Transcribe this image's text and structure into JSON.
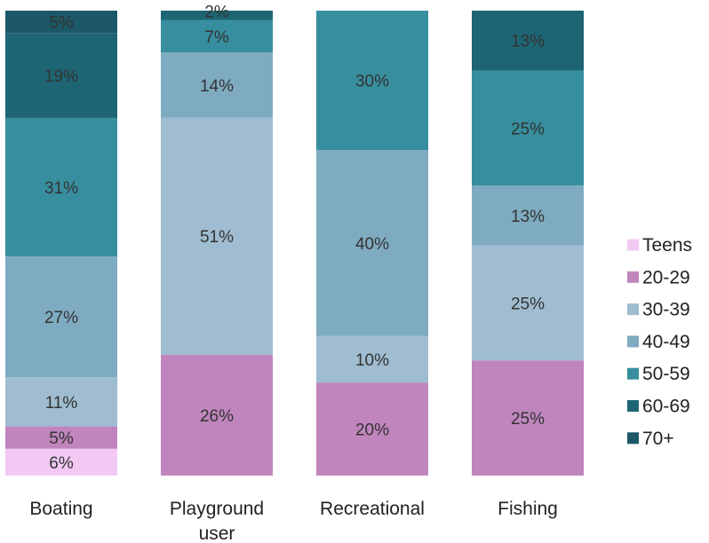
{
  "chart_data": {
    "type": "bar",
    "stacked": true,
    "normalized": true,
    "categories": [
      "Boating",
      "Playground user",
      "Recreational",
      "Fishing"
    ],
    "category_label_lines": [
      [
        "Boating"
      ],
      [
        "Playground",
        "user"
      ],
      [
        "Recreational"
      ],
      [
        "Fishing"
      ]
    ],
    "series": [
      {
        "name": "Teens",
        "color": "#f1c9f3",
        "values": [
          6,
          0,
          0,
          0
        ]
      },
      {
        "name": "20-29",
        "color": "#c085bd",
        "values": [
          5,
          26,
          20,
          25
        ]
      },
      {
        "name": "30-39",
        "color": "#9fbcd0",
        "values": [
          11,
          51,
          10,
          25
        ]
      },
      {
        "name": "40-49",
        "color": "#7fabc1",
        "values": [
          27,
          14,
          40,
          13
        ]
      },
      {
        "name": "50-59",
        "color": "#378e9e",
        "values": [
          31,
          7,
          30,
          25
        ]
      },
      {
        "name": "60-69",
        "color": "#1e6574",
        "values": [
          19,
          2,
          0,
          13
        ]
      },
      {
        "name": "70+",
        "color": "#1c5867",
        "values": [
          5,
          0,
          0,
          0
        ]
      }
    ],
    "data_labels": [
      [
        "6%",
        "",
        "",
        ""
      ],
      [
        "5%",
        "26%",
        "20%",
        "25%"
      ],
      [
        "11%",
        "51%",
        "10%",
        "25%"
      ],
      [
        "27%",
        "14%",
        "40%",
        "13%"
      ],
      [
        "31%",
        "7%",
        "30%",
        "25%"
      ],
      [
        "19%",
        "2%",
        "",
        "13%"
      ],
      [
        "5%",
        "",
        "",
        ""
      ]
    ],
    "legend_position": "right",
    "legend_order": [
      "Teens",
      "20-29",
      "30-39",
      "40-49",
      "50-59",
      "60-69",
      "70+"
    ],
    "grid": false,
    "title": "",
    "xlabel": "",
    "ylabel": ""
  }
}
